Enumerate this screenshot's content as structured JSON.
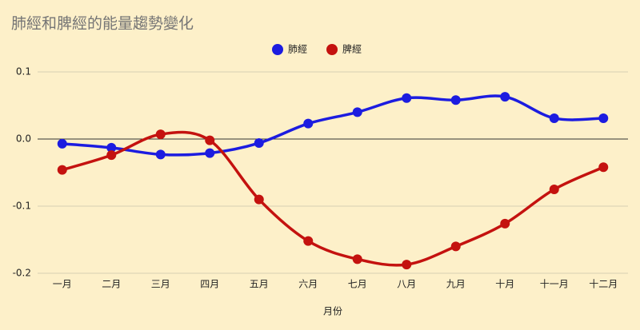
{
  "chart_data": {
    "type": "line",
    "title": "肺經和脾經的能量趨勢變化",
    "x_label": "月份",
    "categories": [
      "一月",
      "二月",
      "三月",
      "四月",
      "五月",
      "六月",
      "七月",
      "八月",
      "九月",
      "十月",
      "十一月",
      "十二月"
    ],
    "series": [
      {
        "name": "肺經",
        "color": "#1c1ce0",
        "values": [
          -0.007,
          -0.013,
          -0.023,
          -0.021,
          -0.006,
          0.023,
          0.04,
          0.061,
          0.058,
          0.063,
          0.031,
          0.031
        ]
      },
      {
        "name": "脾經",
        "color": "#c4120f",
        "values": [
          -0.046,
          -0.024,
          0.007,
          -0.002,
          -0.09,
          -0.152,
          -0.179,
          -0.187,
          -0.16,
          -0.126,
          -0.075,
          -0.042
        ]
      }
    ],
    "ylim": [
      -0.2,
      0.1
    ],
    "yticks": [
      0.1,
      {
        "value": 0,
        "label": "0.0"
      },
      -0.1,
      -0.2
    ],
    "grid": true,
    "smooth": true,
    "legend": "top"
  }
}
